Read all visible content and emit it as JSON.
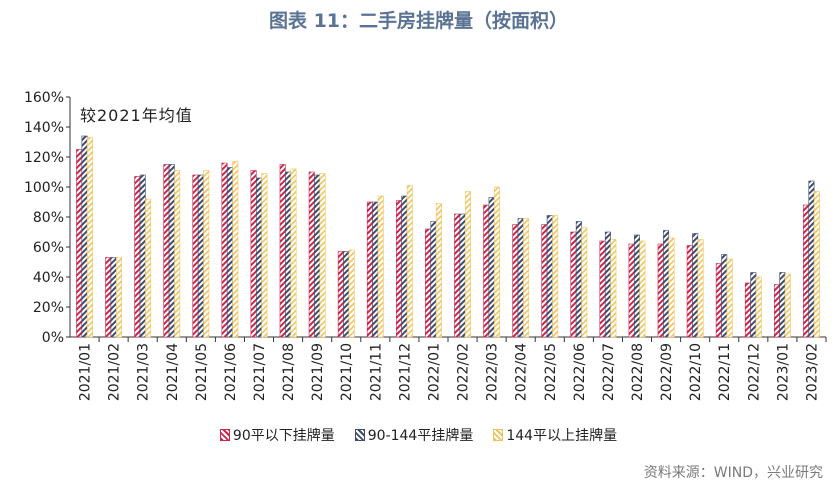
{
  "page": {
    "title": "图表 11：二手房挂牌量（按面积）",
    "source": "资料来源：WIND，兴业研究"
  },
  "chart_data": {
    "type": "bar",
    "title": "图表 11：二手房挂牌量（按面积）",
    "annotation": "较2021年均值",
    "xlabel": "",
    "ylabel": "",
    "ylim": [
      0,
      160
    ],
    "ytick_labels": [
      "0%",
      "20%",
      "40%",
      "60%",
      "80%",
      "100%",
      "120%",
      "140%",
      "160%"
    ],
    "grid": false,
    "legend_position": "bottom",
    "categories": [
      "2021/01",
      "2021/02",
      "2021/03",
      "2021/04",
      "2021/05",
      "2021/06",
      "2021/07",
      "2021/08",
      "2021/09",
      "2021/10",
      "2021/11",
      "2021/12",
      "2022/01",
      "2022/02",
      "2022/03",
      "2022/04",
      "2022/05",
      "2022/06",
      "2022/07",
      "2022/08",
      "2022/09",
      "2022/10",
      "2022/11",
      "2022/12",
      "2023/01",
      "2023/02"
    ],
    "series": [
      {
        "name": "90平以下挂牌量",
        "color": "#c8264b",
        "values": [
          125,
          53,
          107,
          115,
          108,
          116,
          111,
          115,
          110,
          57,
          90,
          91,
          72,
          82,
          88,
          75,
          75,
          70,
          64,
          62,
          62,
          61,
          49,
          36,
          35,
          88
        ]
      },
      {
        "name": "90-144平挂牌量",
        "color": "#3e4b6e",
        "values": [
          134,
          53,
          108,
          115,
          108,
          113,
          106,
          110,
          108,
          57,
          90,
          94,
          77,
          82,
          93,
          79,
          81,
          77,
          70,
          68,
          71,
          69,
          55,
          43,
          43,
          104
        ]
      },
      {
        "name": "144平以上挂牌量",
        "color": "#f0c35a",
        "values": [
          133,
          53,
          92,
          111,
          111,
          117,
          109,
          112,
          109,
          58,
          94,
          101,
          89,
          97,
          100,
          79,
          81,
          73,
          65,
          64,
          66,
          65,
          52,
          40,
          42,
          97
        ]
      }
    ]
  }
}
